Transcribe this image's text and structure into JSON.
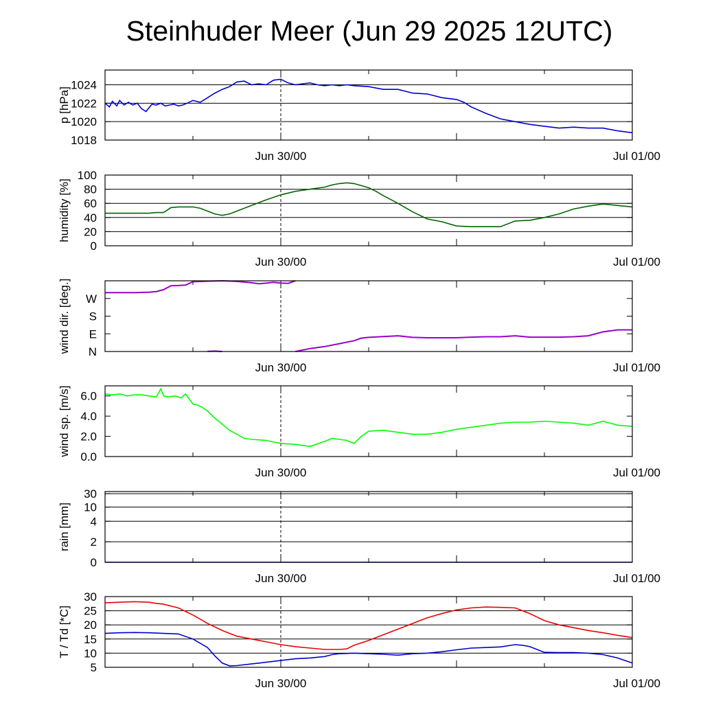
{
  "title": "Steinhuder Meer (Jun 29 2025 12UTC)",
  "x_labels": [
    "Jun 30/00",
    "Jul 01/00"
  ],
  "chart_data": [
    {
      "type": "line",
      "id": "pressure",
      "ylabel": "p [hPa]",
      "ylim": [
        1018,
        1025.6
      ],
      "yticks": [
        1018,
        1020,
        1022,
        1024
      ],
      "ytick_labels": [
        "1018",
        "1020",
        "1022",
        "1024"
      ],
      "grid_y": [
        1018,
        1020,
        1022,
        1024
      ],
      "x_unit": "hours since Jun 29 12UTC",
      "xlim": [
        0,
        36
      ],
      "series": [
        {
          "color": "#0000cc",
          "x": [
            0,
            0.3,
            0.5,
            0.8,
            1,
            1.3,
            1.6,
            1.9,
            2.2,
            2.5,
            2.8,
            3.2,
            3.5,
            3.8,
            4.1,
            4.4,
            4.7,
            5.0,
            5.3,
            5.6,
            6.0,
            6.5,
            7.0,
            7.5,
            8.0,
            8.5,
            9.0,
            9.5,
            10.0,
            10.5,
            11.0,
            11.5,
            12.0,
            12.5,
            13.0,
            13.5,
            14.0,
            14.5,
            15.0,
            15.5,
            16.0,
            16.5,
            17.0,
            18.0,
            19.0,
            20.0,
            21.0,
            22.0,
            23.0,
            24.0,
            24.5,
            25.0,
            26.0,
            27.0,
            28.0,
            29.0,
            30.0,
            31.0,
            32.0,
            33.0,
            34.0,
            35.0,
            35.5,
            36.0
          ],
          "y": [
            1022.0,
            1021.6,
            1022.2,
            1021.7,
            1022.3,
            1021.8,
            1022.1,
            1021.8,
            1022.0,
            1021.4,
            1021.1,
            1021.9,
            1021.8,
            1022.0,
            1021.7,
            1021.8,
            1021.9,
            1021.7,
            1021.8,
            1022.0,
            1022.3,
            1022.1,
            1022.6,
            1023.1,
            1023.5,
            1023.8,
            1024.3,
            1024.4,
            1024.0,
            1024.1,
            1024.0,
            1024.5,
            1024.6,
            1024.2,
            1024.0,
            1024.1,
            1024.2,
            1024.0,
            1023.9,
            1024.0,
            1023.9,
            1024.0,
            1023.9,
            1023.8,
            1023.5,
            1023.5,
            1023.1,
            1023.0,
            1022.6,
            1022.4,
            1022.1,
            1021.6,
            1020.9,
            1020.3,
            1020.0,
            1019.7,
            1019.5,
            1019.3,
            1019.4,
            1019.3,
            1019.3,
            1019.0,
            1018.9,
            1018.8
          ]
        }
      ]
    },
    {
      "type": "line",
      "id": "humidity",
      "ylabel": "humidity [%]",
      "ylim": [
        0,
        100
      ],
      "yticks": [
        0,
        20,
        40,
        60,
        80,
        100
      ],
      "ytick_labels": [
        "0",
        "20",
        "40",
        "60",
        "80",
        "100"
      ],
      "grid_y": [
        20,
        40,
        60,
        80
      ],
      "x_unit": "hours since Jun 29 12UTC",
      "xlim": [
        0,
        36
      ],
      "series": [
        {
          "color": "#006600",
          "x": [
            0,
            1,
            2,
            3,
            3.5,
            4,
            4.5,
            5,
            5.5,
            6,
            6.5,
            7,
            7.5,
            8,
            8.5,
            9,
            10,
            11,
            12,
            13,
            14,
            15,
            15.5,
            16,
            16.5,
            17,
            17.5,
            18,
            18.5,
            19,
            20,
            21,
            22,
            23,
            24,
            25,
            26,
            26.5,
            27,
            28,
            29,
            30,
            31,
            32,
            33,
            34,
            35,
            36
          ],
          "y": [
            46,
            46,
            46,
            46,
            47,
            47,
            54,
            55,
            55,
            55,
            53,
            49,
            45,
            43,
            45,
            49,
            57,
            65,
            72,
            77,
            80,
            83,
            86,
            88,
            89,
            88,
            85,
            82,
            77,
            71,
            60,
            48,
            38,
            34,
            28,
            27,
            27,
            27,
            27,
            35,
            36,
            40,
            45,
            52,
            56,
            59,
            57,
            55
          ]
        }
      ]
    },
    {
      "type": "scatter",
      "id": "wind_direction",
      "ylabel": "wind dir. [deg.]",
      "ylim": [
        0,
        360
      ],
      "yticks": [
        0,
        90,
        180,
        270
      ],
      "ytick_labels": [
        "N",
        "E",
        "S",
        "W"
      ],
      "grid_y": [],
      "x_unit": "hours since Jun 29 12UTC",
      "xlim": [
        0,
        36
      ],
      "series": [
        {
          "color": "#9900cc",
          "x": [
            0,
            1,
            2,
            3,
            3.5,
            4,
            4.5,
            5,
            5.5,
            6,
            7,
            8,
            9,
            10,
            10.5,
            11,
            11.5,
            12,
            12.5,
            13
          ],
          "y": [
            300,
            300,
            300,
            302,
            305,
            315,
            335,
            336,
            338,
            355,
            358,
            360,
            357,
            350,
            345,
            348,
            352,
            348,
            347,
            360
          ]
        },
        {
          "color": "#9900cc",
          "x": [
            7,
            7.5,
            8
          ],
          "y": [
            1,
            2,
            0
          ]
        },
        {
          "color": "#9900cc",
          "x": [
            13,
            14,
            15,
            16,
            17,
            17.5,
            18,
            19,
            20,
            21,
            22,
            23,
            24,
            25,
            26,
            27,
            28,
            29,
            30,
            31,
            32,
            33,
            34,
            35,
            36
          ],
          "y": [
            0,
            15,
            25,
            40,
            55,
            68,
            72,
            76,
            80,
            72,
            70,
            70,
            70,
            73,
            75,
            75,
            80,
            73,
            73,
            73,
            75,
            80,
            100,
            110,
            110
          ]
        }
      ]
    },
    {
      "type": "line",
      "id": "wind_speed",
      "ylabel": "wind sp. [m/s]",
      "ylim": [
        0,
        7
      ],
      "yticks": [
        0,
        2,
        4,
        6
      ],
      "ytick_labels": [
        "0.0",
        "2.0",
        "4.0",
        "6.0"
      ],
      "grid_y": [],
      "x_unit": "hours since Jun 29 12UTC",
      "xlim": [
        0,
        36
      ],
      "series": [
        {
          "color": "#00ff00",
          "x": [
            0,
            0.5,
            1,
            1.5,
            2,
            2.5,
            3,
            3.5,
            3.8,
            4,
            4.3,
            4.8,
            5.2,
            5.5,
            5.8,
            6,
            6.3,
            6.6,
            7,
            7.5,
            8,
            8.5,
            9,
            9.5,
            10,
            11,
            12,
            13,
            14,
            15,
            15.5,
            16,
            16.5,
            17,
            17.5,
            18,
            19,
            20,
            21,
            22,
            23,
            24,
            25,
            26,
            27,
            28,
            29,
            30,
            31,
            32,
            33,
            34,
            35,
            36
          ],
          "y": [
            6.2,
            6.1,
            6.2,
            6.0,
            6.1,
            6.1,
            6.0,
            5.9,
            6.7,
            6.0,
            5.9,
            6.0,
            5.8,
            6.2,
            5.6,
            5.2,
            5.1,
            4.9,
            4.5,
            3.8,
            3.2,
            2.6,
            2.2,
            1.8,
            1.7,
            1.6,
            1.3,
            1.2,
            1.0,
            1.5,
            1.8,
            1.7,
            1.6,
            1.3,
            2.0,
            2.5,
            2.6,
            2.4,
            2.2,
            2.2,
            2.4,
            2.7,
            2.9,
            3.1,
            3.3,
            3.4,
            3.4,
            3.5,
            3.4,
            3.3,
            3.1,
            3.5,
            3.1,
            3.0
          ]
        }
      ]
    },
    {
      "type": "line",
      "id": "rain",
      "ylabel": "rain [mm]",
      "y_scale": "piecewise",
      "yticks": [
        0,
        2,
        4,
        10,
        30
      ],
      "ytick_labels": [
        "0",
        "2",
        "4",
        "10",
        "30"
      ],
      "grid_y": [
        2,
        4,
        10,
        30
      ],
      "x_unit": "hours since Jun 29 12UTC",
      "xlim": [
        0,
        36
      ],
      "series": [
        {
          "color": "#0000cc",
          "x": [
            0,
            36
          ],
          "y": [
            0,
            0
          ]
        }
      ]
    },
    {
      "type": "line",
      "id": "temperature",
      "ylabel": "T / Td [*C]",
      "ylim": [
        5,
        30
      ],
      "yticks": [
        5,
        10,
        15,
        20,
        25,
        30
      ],
      "ytick_labels": [
        "5",
        "10",
        "15",
        "20",
        "25",
        "30"
      ],
      "grid_y": [
        10,
        15,
        20,
        25
      ],
      "x_unit": "hours since Jun 29 12UTC",
      "xlim": [
        0,
        36
      ],
      "series": [
        {
          "color": "#ee0000",
          "x": [
            0,
            1,
            2,
            3,
            3.5,
            4,
            5,
            6,
            7,
            8,
            9,
            10,
            11,
            12,
            13,
            14,
            15,
            16,
            16.5,
            17,
            18,
            19,
            20,
            21,
            22,
            23,
            24,
            25,
            26,
            27,
            28,
            29,
            30,
            31,
            32,
            33,
            34,
            35,
            36
          ],
          "y": [
            27.8,
            28.0,
            28.2,
            28.0,
            27.6,
            27.3,
            26.0,
            23.5,
            20.5,
            18.0,
            16.0,
            15.0,
            14.0,
            13.0,
            12.3,
            11.8,
            11.3,
            11.3,
            11.5,
            12.8,
            14.5,
            16.5,
            18.5,
            20.5,
            22.5,
            24.0,
            25.3,
            26.0,
            26.3,
            26.2,
            26.0,
            24.0,
            21.5,
            20.0,
            19.0,
            18.0,
            17.2,
            16.3,
            15.5
          ]
        },
        {
          "color": "#0000cc",
          "x": [
            0,
            1,
            2,
            3,
            4,
            5,
            6,
            7,
            7.5,
            8,
            8.5,
            9,
            10,
            11,
            12,
            13,
            14,
            15,
            15.5,
            16,
            17,
            18,
            19,
            20,
            21,
            22,
            23,
            24,
            25,
            26,
            27,
            28,
            28.5,
            29,
            30,
            31,
            32,
            33,
            34,
            35,
            36
          ],
          "y": [
            17.0,
            17.2,
            17.3,
            17.2,
            17.0,
            16.8,
            15.0,
            12.0,
            9.0,
            6.5,
            5.5,
            5.6,
            6.2,
            6.8,
            7.4,
            8.0,
            8.3,
            8.8,
            9.5,
            9.8,
            10.0,
            9.8,
            9.6,
            9.3,
            9.8,
            10.0,
            10.5,
            11.2,
            11.8,
            12.0,
            12.2,
            13.0,
            12.8,
            12.3,
            10.3,
            10.2,
            10.2,
            10.0,
            9.5,
            8.3,
            6.5
          ]
        }
      ]
    }
  ]
}
